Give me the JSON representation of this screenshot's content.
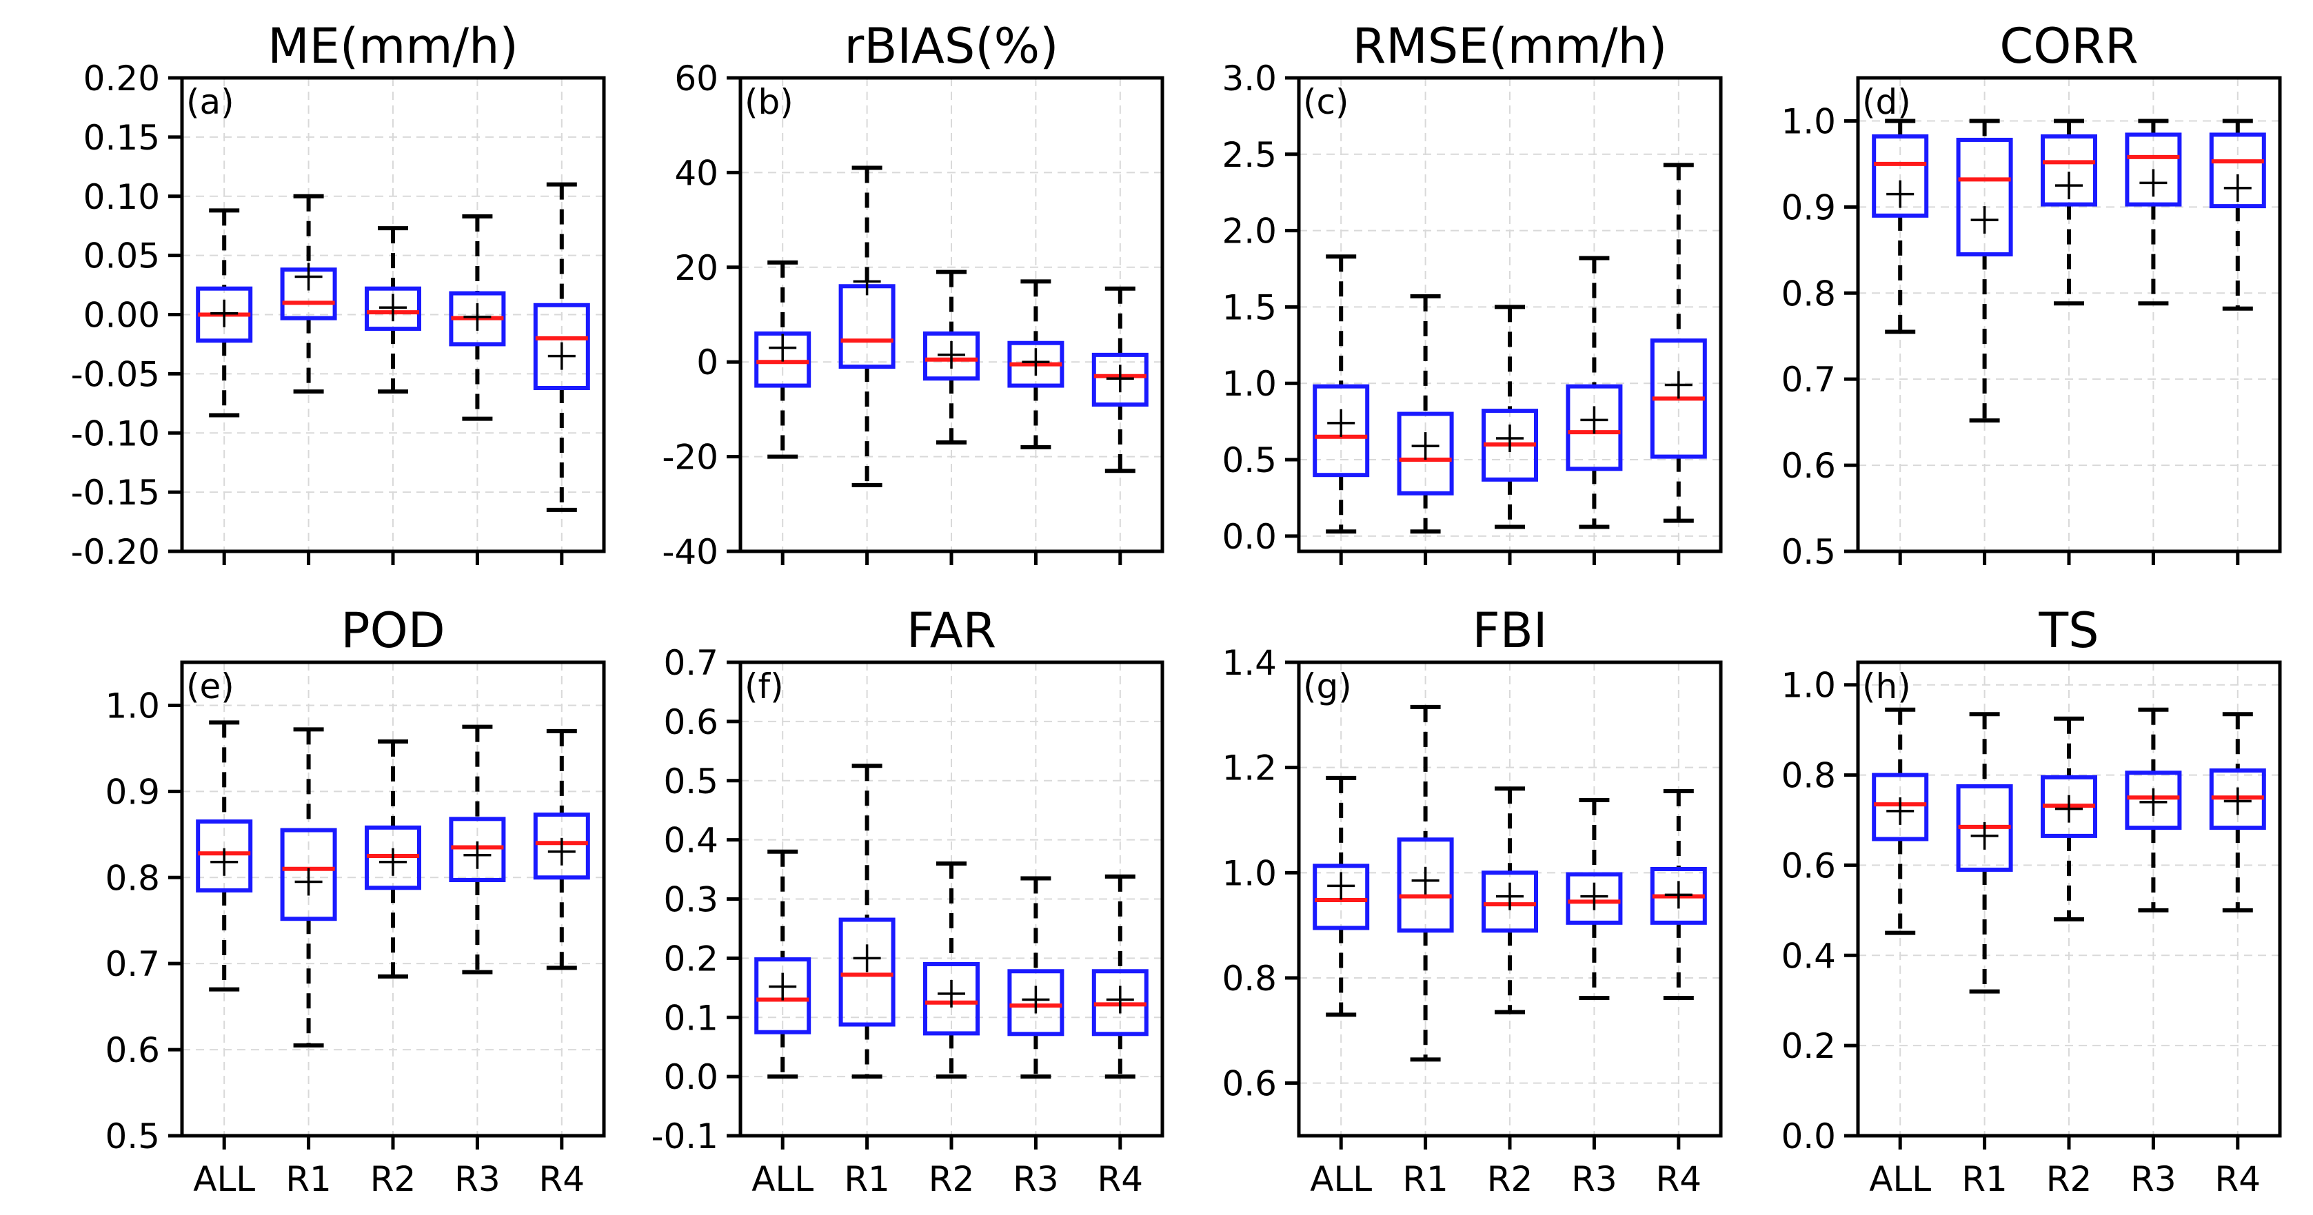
{
  "chart_data": [
    {
      "type": "box",
      "label": "(a)",
      "title": "ME(mm/h)",
      "ylim": [
        -0.2,
        0.2
      ],
      "yticks": [
        -0.2,
        -0.15,
        -0.1,
        -0.05,
        0.0,
        0.05,
        0.1,
        0.15,
        0.2
      ],
      "ytick_labels": [
        "-0.20",
        "-0.15",
        "-0.10",
        "-0.05",
        "0.00",
        "0.05",
        "0.10",
        "0.15",
        "0.20"
      ],
      "categories": [
        "ALL",
        "R1",
        "R2",
        "R3",
        "R4"
      ],
      "show_xticklabels": false,
      "boxes": [
        {
          "min": -0.085,
          "q1": -0.022,
          "median": 0.0,
          "q3": 0.022,
          "max": 0.088,
          "mean": 0.001
        },
        {
          "min": -0.065,
          "q1": -0.003,
          "median": 0.01,
          "q3": 0.038,
          "max": 0.1,
          "mean": 0.032
        },
        {
          "min": -0.065,
          "q1": -0.012,
          "median": 0.002,
          "q3": 0.022,
          "max": 0.073,
          "mean": 0.006
        },
        {
          "min": -0.088,
          "q1": -0.025,
          "median": -0.003,
          "q3": 0.018,
          "max": 0.083,
          "mean": -0.002
        },
        {
          "min": -0.165,
          "q1": -0.062,
          "median": -0.02,
          "q3": 0.008,
          "max": 0.11,
          "mean": -0.035
        }
      ]
    },
    {
      "type": "box",
      "label": "(b)",
      "title": "rBIAS(%)",
      "ylim": [
        -40,
        60
      ],
      "yticks": [
        -40,
        -20,
        0,
        20,
        40,
        60
      ],
      "ytick_labels": [
        "-40",
        "-20",
        "0",
        "20",
        "40",
        "60"
      ],
      "categories": [
        "ALL",
        "R1",
        "R2",
        "R3",
        "R4"
      ],
      "show_xticklabels": false,
      "boxes": [
        {
          "min": -20,
          "q1": -5,
          "median": 0,
          "q3": 6,
          "max": 21,
          "mean": 3
        },
        {
          "min": -26,
          "q1": -1,
          "median": 4.5,
          "q3": 16,
          "max": 41,
          "mean": 17
        },
        {
          "min": -17,
          "q1": -3.5,
          "median": 0.5,
          "q3": 6,
          "max": 19,
          "mean": 1.5
        },
        {
          "min": -18,
          "q1": -5,
          "median": -0.5,
          "q3": 4,
          "max": 17,
          "mean": 0
        },
        {
          "min": -23,
          "q1": -9,
          "median": -3,
          "q3": 1.5,
          "max": 15.5,
          "mean": -3.5
        }
      ]
    },
    {
      "type": "box",
      "label": "(c)",
      "title": "RMSE(mm/h)",
      "ylim": [
        -0.1,
        3.0
      ],
      "yticks": [
        0.0,
        0.5,
        1.0,
        1.5,
        2.0,
        2.5,
        3.0
      ],
      "ytick_labels": [
        "0.0",
        "0.5",
        "1.0",
        "1.5",
        "2.0",
        "2.5",
        "3.0"
      ],
      "categories": [
        "ALL",
        "R1",
        "R2",
        "R3",
        "R4"
      ],
      "show_xticklabels": false,
      "boxes": [
        {
          "min": 0.03,
          "q1": 0.4,
          "median": 0.65,
          "q3": 0.98,
          "max": 1.83,
          "mean": 0.74
        },
        {
          "min": 0.03,
          "q1": 0.28,
          "median": 0.5,
          "q3": 0.8,
          "max": 1.57,
          "mean": 0.59
        },
        {
          "min": 0.06,
          "q1": 0.37,
          "median": 0.6,
          "q3": 0.82,
          "max": 1.5,
          "mean": 0.64
        },
        {
          "min": 0.06,
          "q1": 0.44,
          "median": 0.68,
          "q3": 0.98,
          "max": 1.82,
          "mean": 0.76
        },
        {
          "min": 0.1,
          "q1": 0.52,
          "median": 0.9,
          "q3": 1.28,
          "max": 2.43,
          "mean": 0.99
        }
      ]
    },
    {
      "type": "box",
      "label": "(d)",
      "title": "CORR",
      "ylim": [
        0.5,
        1.05
      ],
      "yticks": [
        0.5,
        0.6,
        0.7,
        0.8,
        0.9,
        1.0
      ],
      "ytick_labels": [
        "0.5",
        "0.6",
        "0.7",
        "0.8",
        "0.9",
        "1.0"
      ],
      "categories": [
        "ALL",
        "R1",
        "R2",
        "R3",
        "R4"
      ],
      "show_xticklabels": false,
      "boxes": [
        {
          "min": 0.755,
          "q1": 0.89,
          "median": 0.95,
          "q3": 0.982,
          "max": 1.0,
          "mean": 0.915
        },
        {
          "min": 0.652,
          "q1": 0.845,
          "median": 0.932,
          "q3": 0.978,
          "max": 1.0,
          "mean": 0.885
        },
        {
          "min": 0.788,
          "q1": 0.903,
          "median": 0.952,
          "q3": 0.982,
          "max": 1.0,
          "mean": 0.925
        },
        {
          "min": 0.788,
          "q1": 0.903,
          "median": 0.958,
          "q3": 0.984,
          "max": 1.0,
          "mean": 0.928
        },
        {
          "min": 0.782,
          "q1": 0.901,
          "median": 0.953,
          "q3": 0.984,
          "max": 1.0,
          "mean": 0.922
        }
      ]
    },
    {
      "type": "box",
      "label": "(e)",
      "title": "POD",
      "ylim": [
        0.5,
        1.05
      ],
      "yticks": [
        0.5,
        0.6,
        0.7,
        0.8,
        0.9,
        1.0
      ],
      "ytick_labels": [
        "0.5",
        "0.6",
        "0.7",
        "0.8",
        "0.9",
        "1.0"
      ],
      "categories": [
        "ALL",
        "R1",
        "R2",
        "R3",
        "R4"
      ],
      "show_xticklabels": true,
      "boxes": [
        {
          "min": 0.67,
          "q1": 0.785,
          "median": 0.828,
          "q3": 0.865,
          "max": 0.98,
          "mean": 0.818
        },
        {
          "min": 0.605,
          "q1": 0.752,
          "median": 0.81,
          "q3": 0.855,
          "max": 0.972,
          "mean": 0.795
        },
        {
          "min": 0.685,
          "q1": 0.788,
          "median": 0.825,
          "q3": 0.858,
          "max": 0.958,
          "mean": 0.818
        },
        {
          "min": 0.69,
          "q1": 0.797,
          "median": 0.835,
          "q3": 0.868,
          "max": 0.975,
          "mean": 0.826
        },
        {
          "min": 0.695,
          "q1": 0.8,
          "median": 0.84,
          "q3": 0.873,
          "max": 0.97,
          "mean": 0.83
        }
      ]
    },
    {
      "type": "box",
      "label": "(f)",
      "title": "FAR",
      "ylim": [
        -0.1,
        0.7
      ],
      "yticks": [
        -0.1,
        0.0,
        0.1,
        0.2,
        0.3,
        0.4,
        0.5,
        0.6,
        0.7
      ],
      "ytick_labels": [
        "-0.1",
        "0.0",
        "0.1",
        "0.2",
        "0.3",
        "0.4",
        "0.5",
        "0.6",
        "0.7"
      ],
      "categories": [
        "ALL",
        "R1",
        "R2",
        "R3",
        "R4"
      ],
      "show_xticklabels": true,
      "boxes": [
        {
          "min": 0.0,
          "q1": 0.075,
          "median": 0.13,
          "q3": 0.198,
          "max": 0.38,
          "mean": 0.152
        },
        {
          "min": 0.0,
          "q1": 0.088,
          "median": 0.172,
          "q3": 0.265,
          "max": 0.525,
          "mean": 0.2
        },
        {
          "min": 0.0,
          "q1": 0.073,
          "median": 0.125,
          "q3": 0.19,
          "max": 0.36,
          "mean": 0.14
        },
        {
          "min": 0.0,
          "q1": 0.072,
          "median": 0.12,
          "q3": 0.178,
          "max": 0.335,
          "mean": 0.13
        },
        {
          "min": 0.0,
          "q1": 0.072,
          "median": 0.122,
          "q3": 0.178,
          "max": 0.338,
          "mean": 0.13
        }
      ]
    },
    {
      "type": "box",
      "label": "(g)",
      "title": "FBI",
      "ylim": [
        0.5,
        1.4
      ],
      "yticks": [
        0.6,
        0.8,
        1.0,
        1.2,
        1.4
      ],
      "ytick_labels": [
        "0.6",
        "0.8",
        "1.0",
        "1.2",
        "1.4"
      ],
      "categories": [
        "ALL",
        "R1",
        "R2",
        "R3",
        "R4"
      ],
      "show_xticklabels": true,
      "boxes": [
        {
          "min": 0.73,
          "q1": 0.895,
          "median": 0.948,
          "q3": 1.013,
          "max": 1.18,
          "mean": 0.975
        },
        {
          "min": 0.645,
          "q1": 0.89,
          "median": 0.955,
          "q3": 1.063,
          "max": 1.315,
          "mean": 0.985
        },
        {
          "min": 0.735,
          "q1": 0.89,
          "median": 0.94,
          "q3": 1.0,
          "max": 1.16,
          "mean": 0.955
        },
        {
          "min": 0.762,
          "q1": 0.905,
          "median": 0.945,
          "q3": 0.997,
          "max": 1.138,
          "mean": 0.955
        },
        {
          "min": 0.762,
          "q1": 0.905,
          "median": 0.955,
          "q3": 1.007,
          "max": 1.155,
          "mean": 0.958
        }
      ]
    },
    {
      "type": "box",
      "label": "(h)",
      "title": "TS",
      "ylim": [
        0.0,
        1.05
      ],
      "yticks": [
        0.0,
        0.2,
        0.4,
        0.6,
        0.8,
        1.0
      ],
      "ytick_labels": [
        "0.0",
        "0.2",
        "0.4",
        "0.6",
        "0.8",
        "1.0"
      ],
      "categories": [
        "ALL",
        "R1",
        "R2",
        "R3",
        "R4"
      ],
      "show_xticklabels": true,
      "boxes": [
        {
          "min": 0.45,
          "q1": 0.658,
          "median": 0.735,
          "q3": 0.8,
          "max": 0.945,
          "mean": 0.72
        },
        {
          "min": 0.32,
          "q1": 0.59,
          "median": 0.685,
          "q3": 0.775,
          "max": 0.935,
          "mean": 0.665
        },
        {
          "min": 0.48,
          "q1": 0.665,
          "median": 0.732,
          "q3": 0.795,
          "max": 0.925,
          "mean": 0.725
        },
        {
          "min": 0.5,
          "q1": 0.683,
          "median": 0.75,
          "q3": 0.805,
          "max": 0.945,
          "mean": 0.74
        },
        {
          "min": 0.5,
          "q1": 0.683,
          "median": 0.75,
          "q3": 0.81,
          "max": 0.935,
          "mean": 0.742
        }
      ]
    }
  ]
}
